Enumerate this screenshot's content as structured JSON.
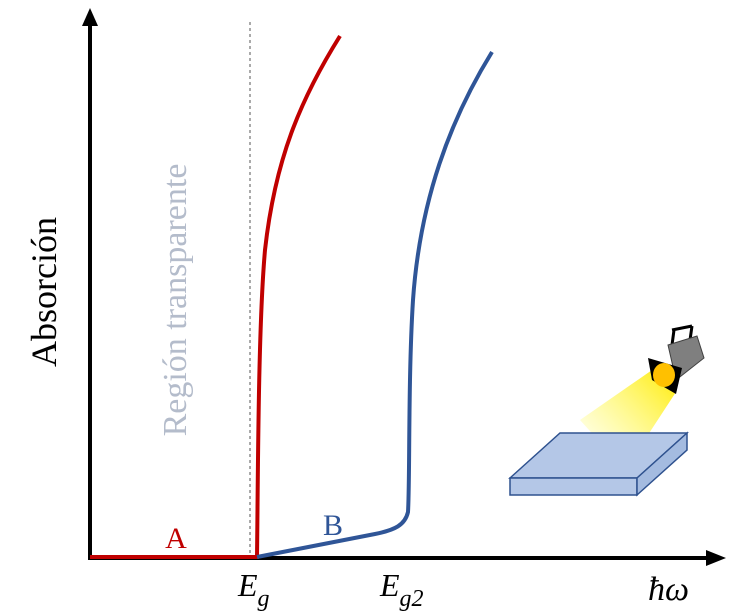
{
  "y_axis_label": "Absorción",
  "region_label": "Región transparente",
  "curve_labels": [
    "A",
    "B"
  ],
  "x_labels": [
    {
      "main": "E",
      "sub": "g"
    },
    {
      "main": "E",
      "sub": "g2"
    }
  ],
  "x_axis_label": "ħω"
}
